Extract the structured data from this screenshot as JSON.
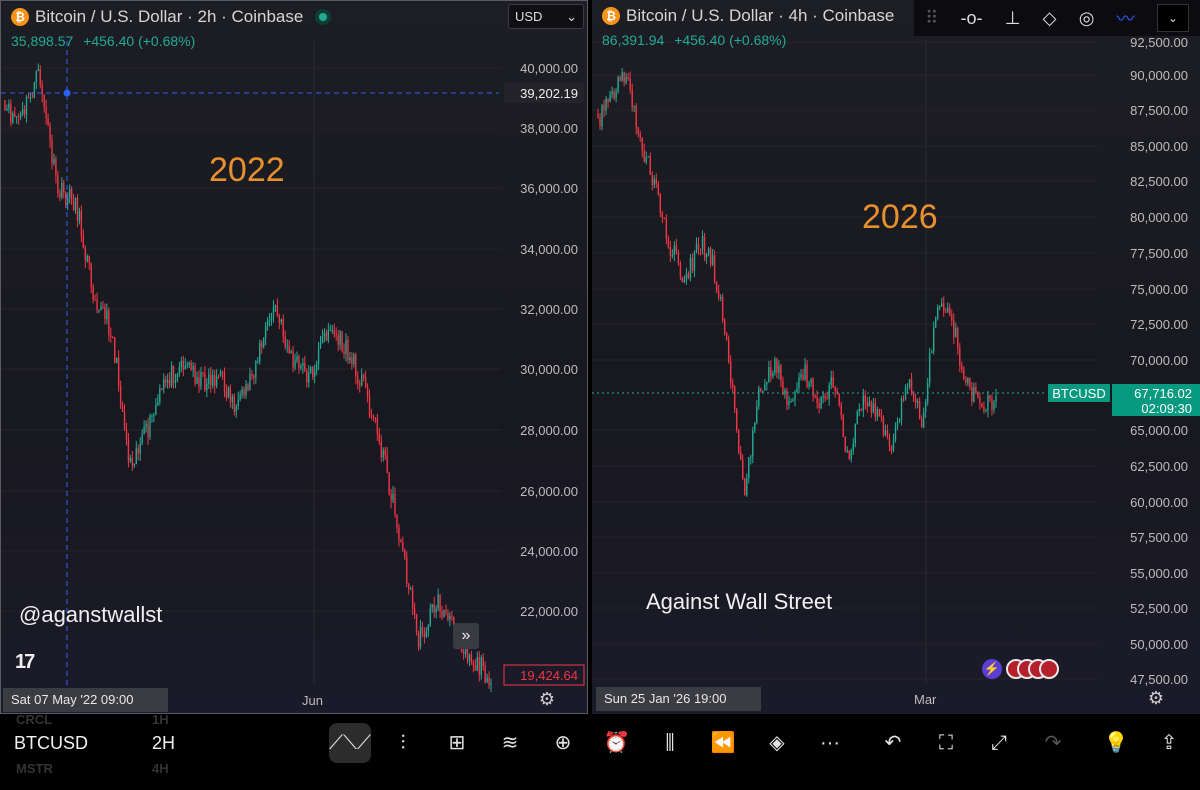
{
  "left_chart": {
    "title": "Bitcoin / U.S. Dollar · 2h · Coinbase",
    "price": "35,898.57",
    "change": "+456.40 (+0.68%)",
    "currency": "USD",
    "year_label": "2022",
    "watermark": "@aganstwallst",
    "crosshair_price": "39,202.19",
    "last_price": "19,424.64",
    "crosshair_date": "Sat 07 May '22   09:00",
    "x_label": "Jun",
    "y_ticks": [
      "40,000.00",
      "38,000.00",
      "36,000.00",
      "34,000.00",
      "32,000.00",
      "30,000.00",
      "28,000.00",
      "26,000.00",
      "24,000.00",
      "22,000.00"
    ]
  },
  "right_chart": {
    "title": "Bitcoin / U.S. Dollar · 4h · Coinbase",
    "price": "86,391.94",
    "change": "+456.40 (+0.68%)",
    "year_label": "2026",
    "watermark": "Against Wall Street",
    "symbol_tag": "BTCUSD",
    "last_price": "67,716.02",
    "countdown": "02:09:30",
    "crosshair_date": "Sun 25 Jan '26   19:00",
    "x_label": "Mar",
    "y_ticks": [
      "92,500.00",
      "90,000.00",
      "87,500.00",
      "85,000.00",
      "82,500.00",
      "80,000.00",
      "77,500.00",
      "75,000.00",
      "72,500.00",
      "70,000.00",
      "65,000.00",
      "62,500.00",
      "60,000.00",
      "57,500.00",
      "55,000.00",
      "52,500.00",
      "50,000.00",
      "47,500.00"
    ]
  },
  "bottom_bar": {
    "symbol": "BTCUSD",
    "interval": "2H",
    "ghost_above": "CRCL",
    "ghost_above_interval": "1H",
    "ghost_below": "MSTR",
    "ghost_below_interval": "4H",
    "tools": [
      "line-chart-icon",
      "indicators-icon",
      "layouts-icon",
      "compare-icon",
      "add-icon",
      "alert-icon",
      "candles-icon",
      "replay-icon",
      "layers-icon",
      "more-icon",
      "undo-icon",
      "fullscreen-icon",
      "expand-icon",
      "redo-icon",
      "ideas-icon",
      "share-icon"
    ]
  },
  "colors": {
    "up": "#22ab94",
    "down": "#f23645",
    "year": "#e8902e",
    "crosshair": "#2962ff"
  }
}
